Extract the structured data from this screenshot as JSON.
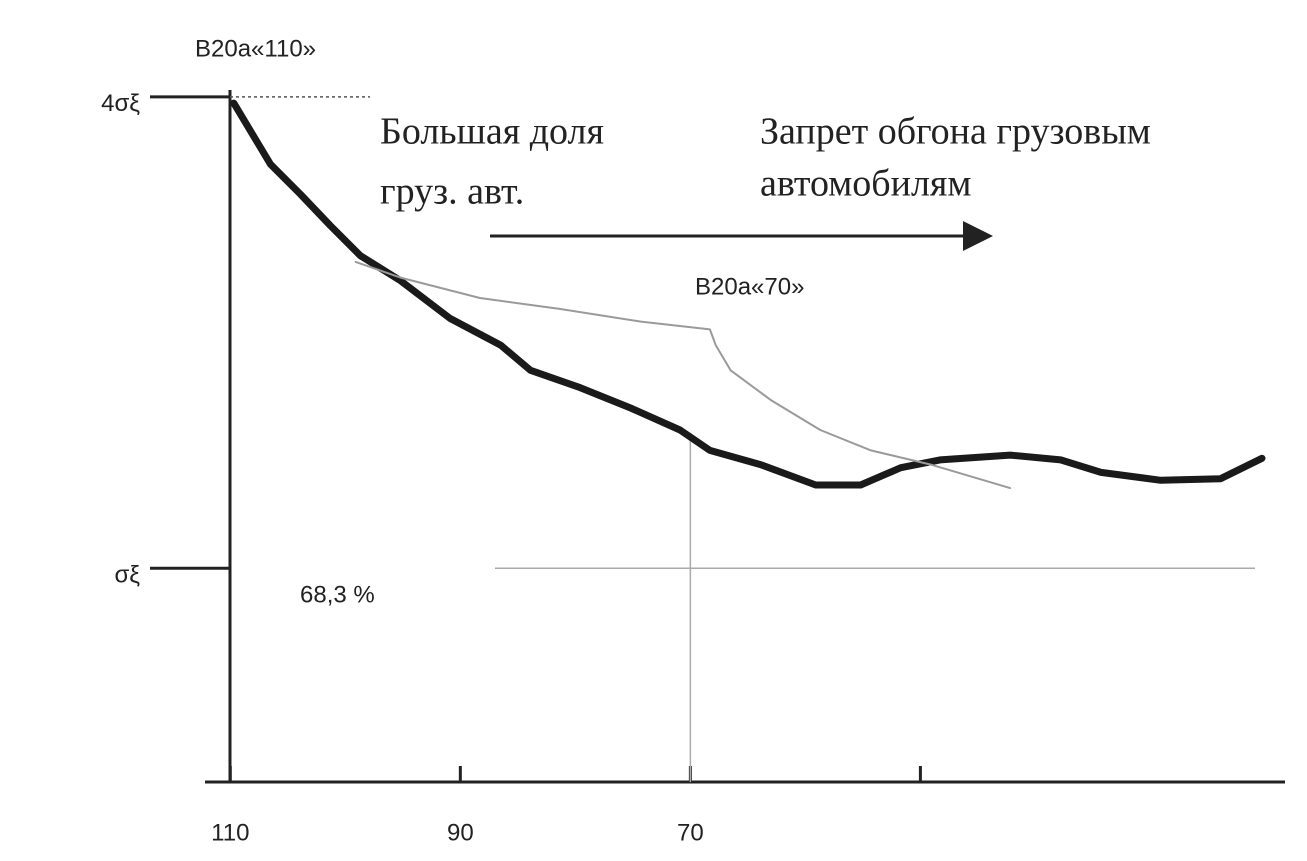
{
  "chart_data": {
    "type": "line",
    "xlim": [
      112.2,
      18.3
    ],
    "xticks": [
      110,
      90,
      70,
      {
        "value": 50,
        "label": null
      }
    ],
    "ylim": [
      -0.36,
      4.05
    ],
    "yticks": [
      {
        "value": 1,
        "label": "σξ"
      },
      {
        "value": 4,
        "label": "4σξ"
      }
    ],
    "series": [
      {
        "name": "B20a«110»",
        "color": "#1a1a1a",
        "x": [
          109.7,
          106.5,
          103.9,
          101.3,
          98.7,
          95.2,
          90.9,
          86.5,
          83.9,
          79.6,
          75.2,
          70.9,
          68.3,
          63.9,
          59.1,
          55.2,
          51.7,
          48.3,
          42.2,
          37.8,
          34.3,
          29.1,
          23.9,
          20.3
        ],
        "values": [
          3.96,
          3.57,
          3.38,
          3.18,
          2.99,
          2.83,
          2.59,
          2.42,
          2.26,
          2.15,
          2.02,
          1.88,
          1.75,
          1.66,
          1.53,
          1.53,
          1.64,
          1.69,
          1.72,
          1.69,
          1.61,
          1.56,
          1.57,
          1.7
        ]
      },
      {
        "name": "B20a«70»",
        "color": "#9a9a9a",
        "x": [
          99.1,
          95.2,
          88.3,
          81.3,
          74.3,
          68.3,
          67.8,
          66.5,
          63.0,
          58.7,
          54.3,
          49.1,
          42.2
        ],
        "values": [
          2.95,
          2.85,
          2.72,
          2.65,
          2.57,
          2.52,
          2.42,
          2.26,
          2.07,
          1.88,
          1.75,
          1.66,
          1.51
        ]
      }
    ],
    "annotations": [
      "Большая доля",
      "груз. авт.",
      "Запрет обгона грузовым",
      "автомобилям",
      "68,3 %"
    ]
  }
}
